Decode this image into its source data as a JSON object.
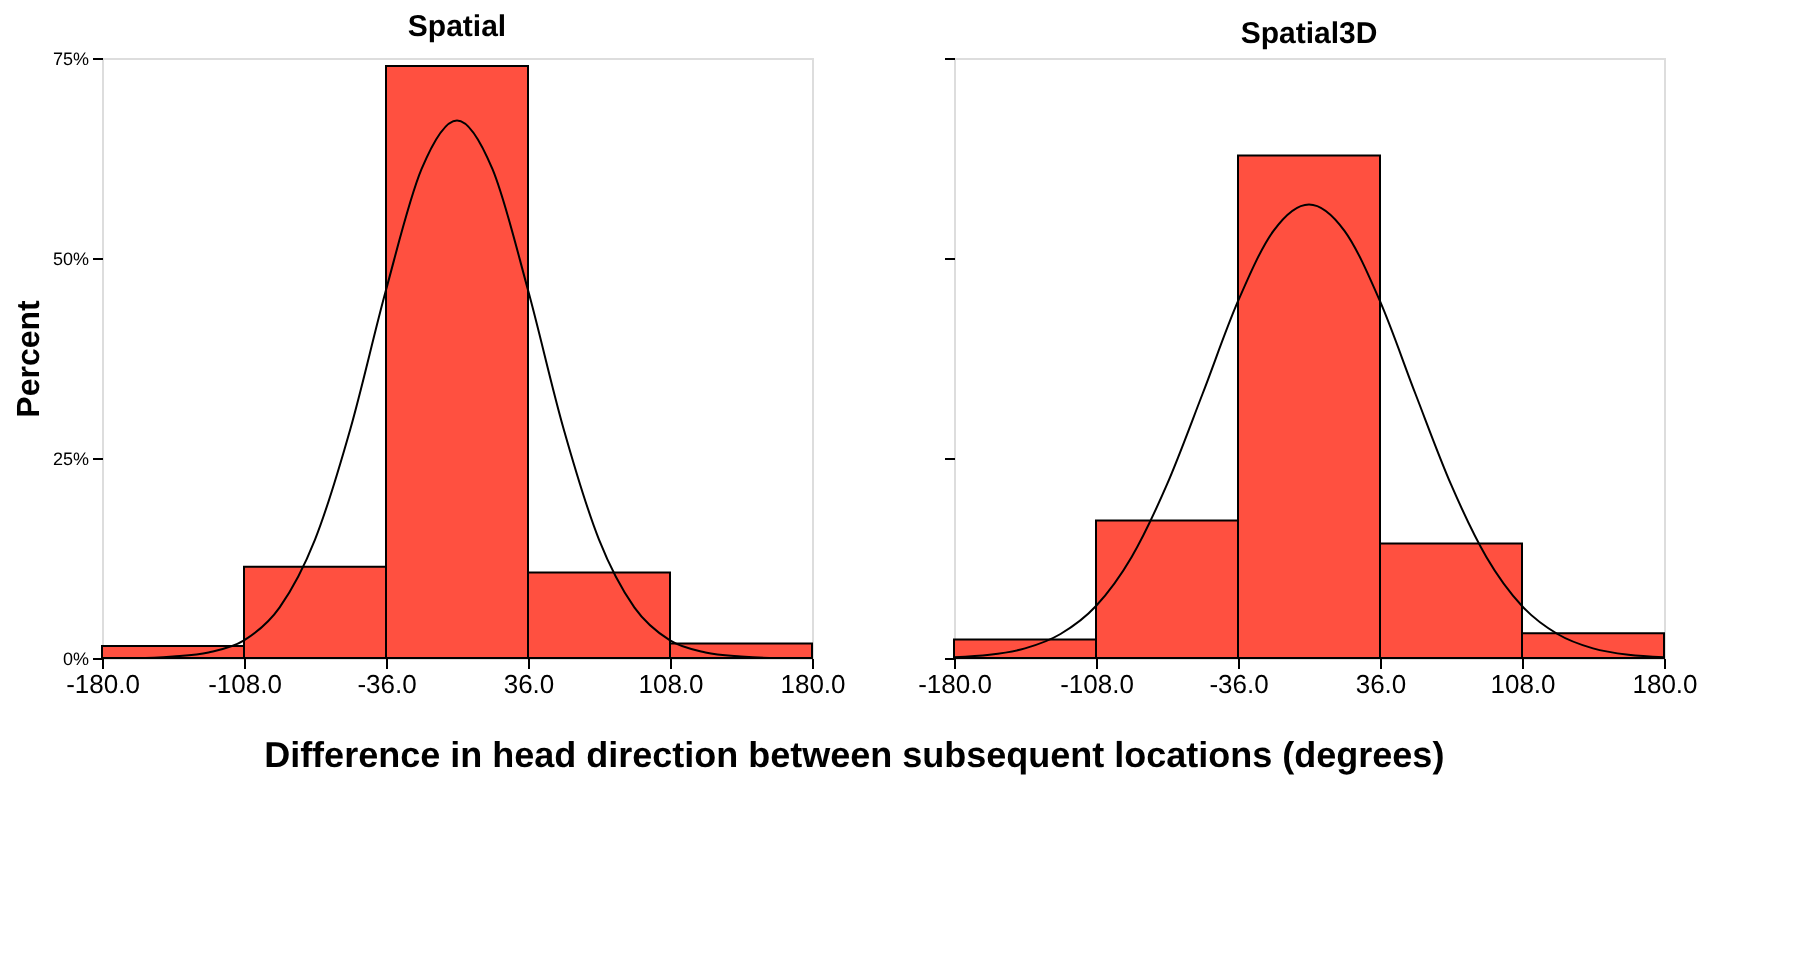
{
  "chart_data": [
    {
      "type": "histogram",
      "title": "Spatial",
      "ylabel": "Percent",
      "xlabel": "Difference in head direction between subsequent locations (degrees)",
      "bins": [
        -180,
        -108,
        -36,
        36,
        108,
        180
      ],
      "values": [
        1.5,
        11.4,
        74,
        10.7,
        1.8
      ],
      "color": "#ff5040",
      "series": [
        {
          "type": "line",
          "color": "#000000",
          "x": [
            -180,
            -162,
            -144,
            -126,
            -108,
            -90,
            -72,
            -54,
            -36,
            -18,
            0,
            18,
            36,
            54,
            72,
            90,
            108,
            126,
            144,
            162,
            180
          ],
          "values": [
            0,
            0,
            0.2,
            0.7,
            2.2,
            6.3,
            14.8,
            28.7,
            46.0,
            61.1,
            67.2,
            61.1,
            46.0,
            28.7,
            14.8,
            6.3,
            2.2,
            0.7,
            0.2,
            0,
            0
          ]
        }
      ],
      "xlim": [
        -180,
        180
      ],
      "xticks": [
        {
          "value": -180,
          "label": "-180.0"
        },
        {
          "value": -108,
          "label": "-108.0"
        },
        {
          "value": -36,
          "label": "-36.0"
        },
        {
          "value": 36,
          "label": "36.0"
        },
        {
          "value": 108,
          "label": "108.0"
        },
        {
          "value": 180,
          "label": "180.0"
        }
      ],
      "ylim": [
        0,
        75
      ],
      "yticks": [
        {
          "value": 0,
          "label": "0%"
        },
        {
          "value": 25,
          "label": "25%"
        },
        {
          "value": 50,
          "label": "50%"
        },
        {
          "value": 75,
          "label": "75%"
        }
      ],
      "grid": false
    },
    {
      "type": "histogram",
      "title": "Spatial3D",
      "bins": [
        -180,
        -108,
        -36,
        36,
        108,
        180
      ],
      "values": [
        2.3,
        17.2,
        62.8,
        14.3,
        3.1
      ],
      "color": "#ff5040",
      "series": [
        {
          "type": "line",
          "color": "#000000",
          "x": [
            -180,
            -162,
            -144,
            -126,
            -108,
            -90,
            -72,
            -54,
            -36,
            -18,
            0,
            18,
            36,
            54,
            72,
            90,
            108,
            126,
            144,
            162,
            180
          ],
          "values": [
            0.1,
            0.4,
            1.2,
            3.0,
            6.5,
            12.6,
            21.7,
            33.0,
            44.6,
            53.4,
            56.7,
            53.4,
            44.6,
            33.0,
            21.7,
            12.6,
            6.5,
            3.0,
            1.2,
            0.4,
            0.1
          ]
        }
      ],
      "xlim": [
        -180,
        180
      ],
      "xticks": [
        {
          "value": -180,
          "label": "-180.0"
        },
        {
          "value": -108,
          "label": "-108.0"
        },
        {
          "value": -36,
          "label": "-36.0"
        },
        {
          "value": 36,
          "label": "36.0"
        },
        {
          "value": 108,
          "label": "108.0"
        },
        {
          "value": 180,
          "label": "180.0"
        }
      ],
      "ylim": [
        0,
        75
      ],
      "yticks": [
        {
          "value": 0,
          "label": null
        },
        {
          "value": 25,
          "label": null
        },
        {
          "value": 50,
          "label": null
        },
        {
          "value": 75,
          "label": null
        }
      ],
      "grid": false,
      "tick_labels": "x"
    }
  ]
}
